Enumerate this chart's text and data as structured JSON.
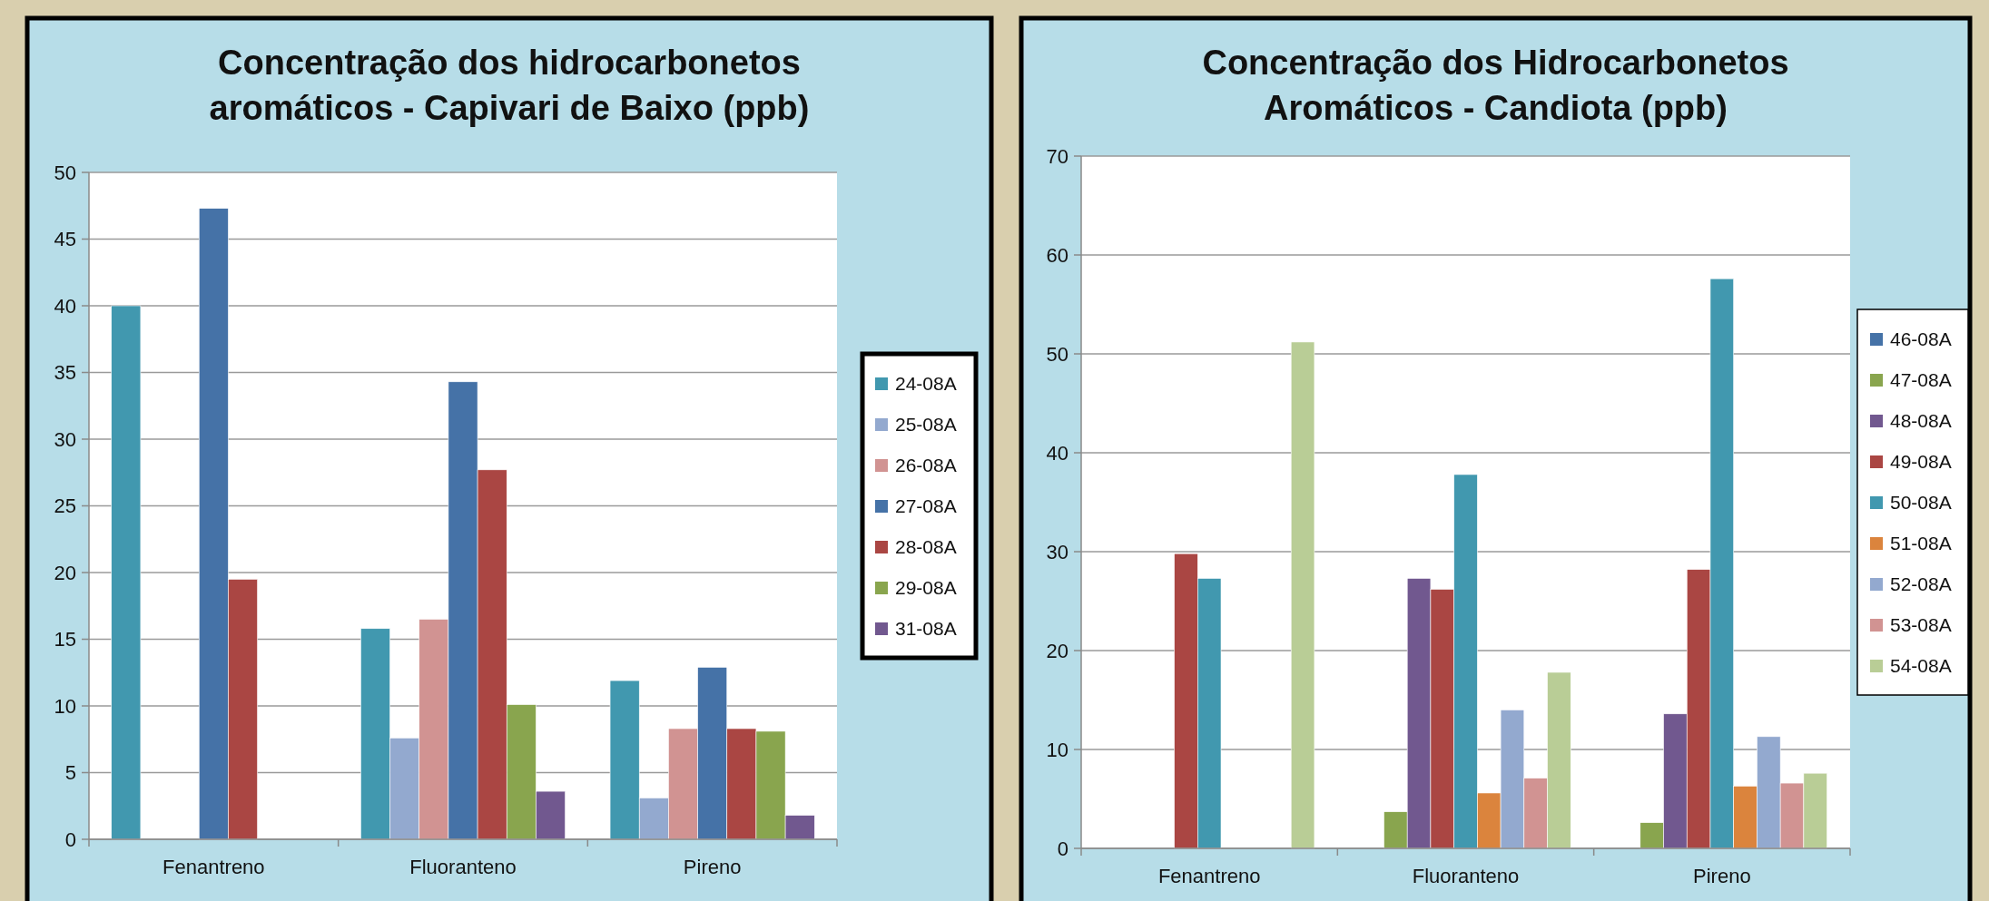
{
  "chart_data": [
    {
      "type": "bar",
      "title": "Concentração dos hidrocarbonetos aromáticos - Capivari de Baixo (ppb)",
      "categories": [
        "Fenantreno",
        "Fluoranteno",
        "Pireno"
      ],
      "ylim": [
        0,
        50
      ],
      "yticks": [
        0,
        5,
        10,
        15,
        20,
        25,
        30,
        35,
        40,
        45,
        50
      ],
      "grid": "y",
      "legend": "right",
      "series": [
        {
          "name": "24-08A",
          "color": "#4198af",
          "values": [
            40,
            15.8,
            11.9
          ]
        },
        {
          "name": "25-08A",
          "color": "#93a9cf",
          "values": [
            null,
            7.6,
            3.1
          ]
        },
        {
          "name": "26-08A",
          "color": "#d19392",
          "values": [
            null,
            16.5,
            8.3
          ]
        },
        {
          "name": "27-08A",
          "color": "#4572a7",
          "values": [
            47.3,
            34.3,
            12.9
          ]
        },
        {
          "name": "28-08A",
          "color": "#aa4643",
          "values": [
            19.5,
            27.7,
            8.3
          ]
        },
        {
          "name": "29-08A",
          "color": "#89a54e",
          "values": [
            null,
            10.1,
            8.1
          ]
        },
        {
          "name": "31-08A",
          "color": "#71588f",
          "values": [
            null,
            3.6,
            1.8
          ]
        }
      ]
    },
    {
      "type": "bar",
      "title": "Concentração dos Hidrocarbonetos Aromáticos - Candiota (ppb)",
      "categories": [
        "Fenantreno",
        "Fluoranteno",
        "Pireno"
      ],
      "ylim": [
        0,
        70
      ],
      "yticks": [
        0,
        10,
        20,
        30,
        40,
        50,
        60,
        70
      ],
      "grid": "y",
      "legend": "right",
      "series": [
        {
          "name": "46-08A",
          "color": "#4572a7",
          "values": [
            null,
            null,
            null
          ]
        },
        {
          "name": "47-08A",
          "color": "#89a54e",
          "values": [
            null,
            3.7,
            2.6
          ]
        },
        {
          "name": "48-08A",
          "color": "#71588f",
          "values": [
            null,
            27.3,
            13.6
          ]
        },
        {
          "name": "49-08A",
          "color": "#aa4643",
          "values": [
            29.8,
            26.2,
            28.2
          ]
        },
        {
          "name": "50-08A",
          "color": "#4198af",
          "values": [
            27.3,
            37.8,
            57.6
          ]
        },
        {
          "name": "51-08A",
          "color": "#db843d",
          "values": [
            null,
            5.6,
            6.3
          ]
        },
        {
          "name": "52-08A",
          "color": "#93a9cf",
          "values": [
            null,
            14.0,
            11.3
          ]
        },
        {
          "name": "53-08A",
          "color": "#d19392",
          "values": [
            null,
            7.1,
            6.6
          ]
        },
        {
          "name": "54-08A",
          "color": "#b9cd96",
          "values": [
            51.2,
            17.8,
            7.6
          ]
        }
      ]
    }
  ]
}
